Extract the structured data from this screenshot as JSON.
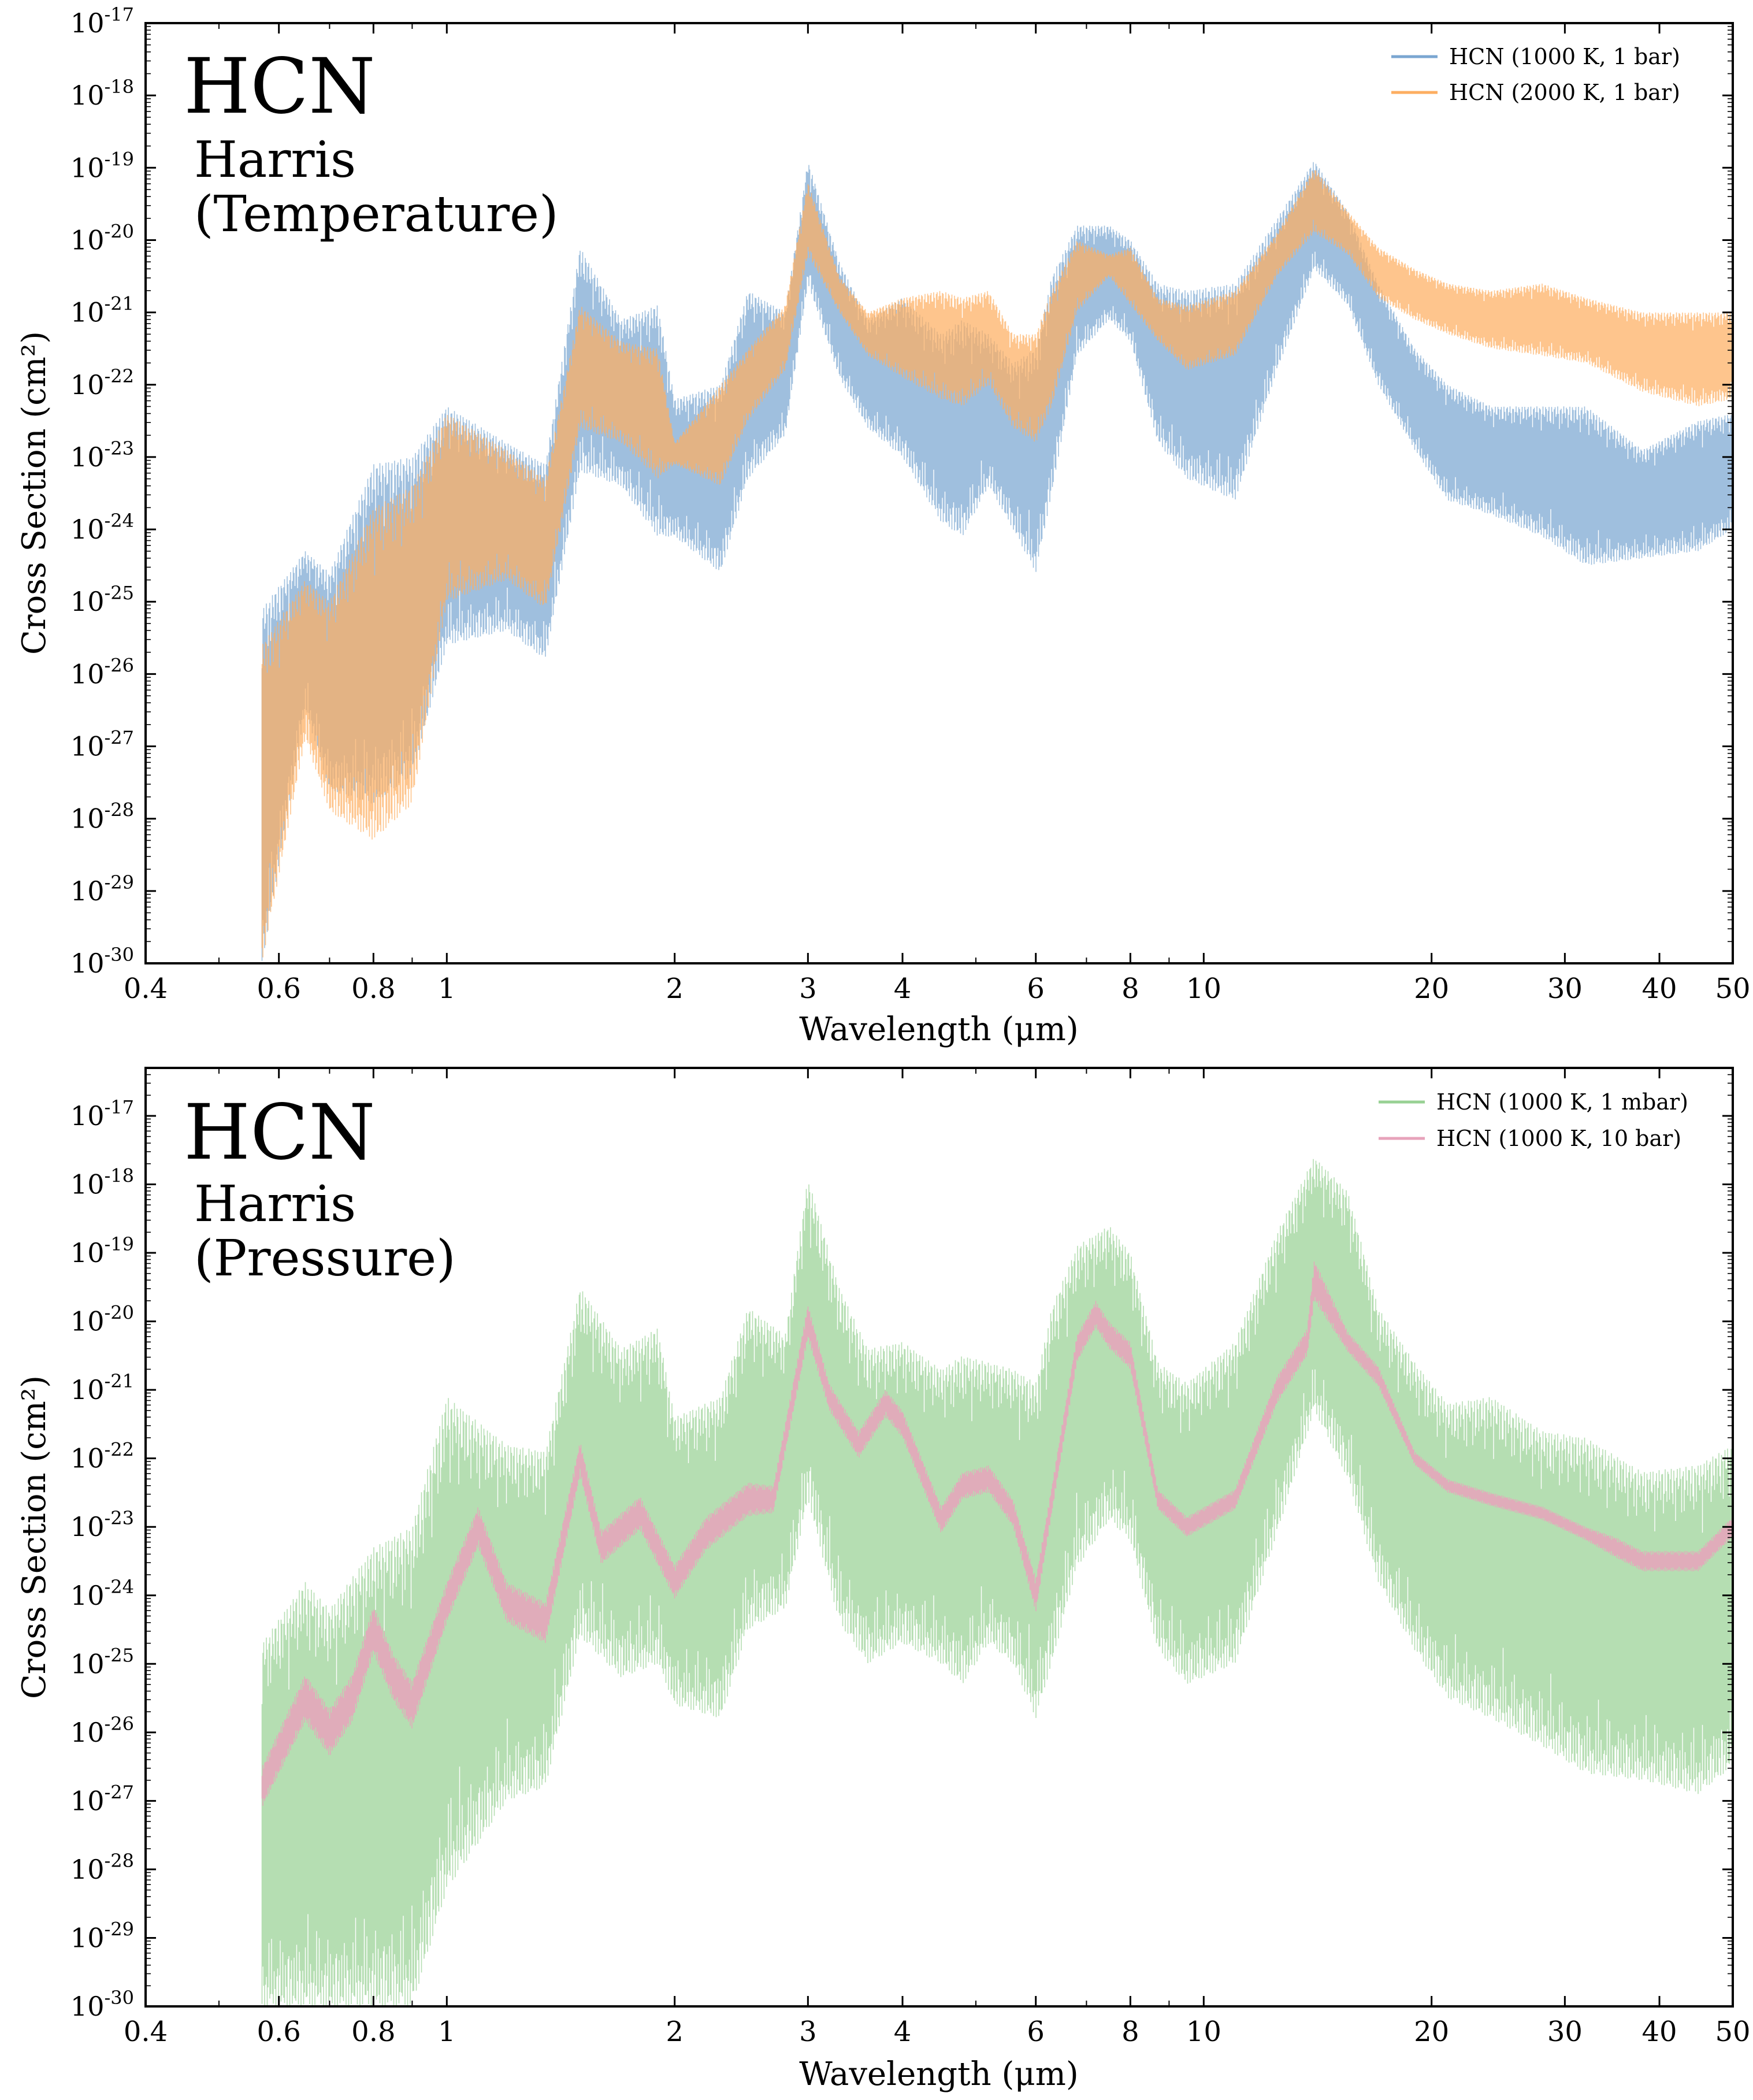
{
  "chart_data": [
    {
      "type": "line",
      "title": "HCN",
      "subtitle_lines": [
        "Harris",
        "(Temperature)"
      ],
      "xlabel": "Wavelength (μm)",
      "ylabel": "Cross Section (cm²)",
      "xscale": "log",
      "yscale": "log",
      "xlim": [
        0.4,
        50
      ],
      "ylim_exp": [
        -30,
        -17
      ],
      "x_ticks": [
        "0.4",
        "0.6",
        "0.8",
        "1",
        "2",
        "3",
        "4",
        "6",
        "8",
        "10",
        "20",
        "30",
        "40",
        "50"
      ],
      "x_tick_values": [
        0.4,
        0.6,
        0.8,
        1,
        2,
        3,
        4,
        6,
        8,
        10,
        20,
        30,
        40,
        50
      ],
      "y_tick_base": "10",
      "y_tick_exponents": [
        "-17",
        "-18",
        "-19",
        "-20",
        "-21",
        "-22",
        "-23",
        "-24",
        "-25",
        "-26",
        "-27",
        "-28",
        "-29",
        "-30"
      ],
      "legend_position": "top-right",
      "series": [
        {
          "name": "HCN (1000 K, 1 bar)",
          "color": "#7aa6d1",
          "x": [
            0.57,
            0.65,
            0.7,
            0.8,
            0.9,
            1.0,
            1.2,
            1.35,
            1.5,
            1.7,
            1.9,
            2.0,
            2.3,
            2.5,
            2.8,
            3.0,
            3.3,
            3.6,
            4.0,
            4.5,
            4.8,
            5.2,
            5.6,
            6.0,
            6.3,
            6.8,
            7.5,
            8.0,
            8.7,
            9.5,
            11.0,
            12.5,
            14.0,
            15.5,
            17.0,
            19.0,
            21.0,
            24.0,
            28.0,
            32.0,
            38.0,
            45.0,
            50.0
          ],
          "y_upper_exp": [
            -25.1,
            -24.3,
            -24.6,
            -23.1,
            -23.0,
            -22.3,
            -22.8,
            -23.1,
            -20.1,
            -21.1,
            -20.9,
            -22.2,
            -22.0,
            -20.7,
            -21.0,
            -18.9,
            -20.3,
            -21.1,
            -20.8,
            -21.3,
            -21.1,
            -21.3,
            -21.7,
            -21.5,
            -20.5,
            -19.8,
            -19.8,
            -20.0,
            -20.6,
            -20.7,
            -20.6,
            -19.7,
            -18.9,
            -19.6,
            -20.6,
            -21.5,
            -22.0,
            -22.3,
            -22.3,
            -22.3,
            -22.9,
            -22.5,
            -22.4
          ],
          "y_lower_exp": [
            -30.0,
            -26.5,
            -27.6,
            -27.8,
            -27.4,
            -25.6,
            -25.4,
            -25.8,
            -23.2,
            -23.4,
            -24.1,
            -24.1,
            -24.6,
            -23.3,
            -22.7,
            -20.6,
            -21.9,
            -22.6,
            -23.0,
            -23.9,
            -24.1,
            -23.4,
            -24.0,
            -24.6,
            -23.5,
            -21.6,
            -21.1,
            -21.4,
            -22.8,
            -23.3,
            -23.6,
            -21.8,
            -20.4,
            -20.9,
            -22.0,
            -22.9,
            -23.6,
            -23.8,
            -24.1,
            -24.5,
            -24.4,
            -24.3,
            -24.0
          ]
        },
        {
          "name": "HCN (2000 K, 1 bar)",
          "color": "#fdae61",
          "x": [
            0.57,
            0.65,
            0.7,
            0.8,
            0.9,
            1.0,
            1.2,
            1.35,
            1.5,
            1.7,
            1.9,
            2.0,
            2.3,
            2.5,
            2.8,
            3.0,
            3.3,
            3.6,
            4.0,
            4.5,
            4.8,
            5.2,
            5.6,
            6.0,
            6.3,
            6.8,
            7.5,
            8.0,
            8.7,
            9.5,
            11.0,
            12.5,
            14.0,
            15.5,
            17.0,
            19.0,
            21.0,
            24.0,
            28.0,
            32.0,
            38.0,
            45.0,
            50.0
          ],
          "y_upper_exp": [
            -25.6,
            -24.7,
            -25.0,
            -23.7,
            -23.4,
            -22.4,
            -22.9,
            -23.3,
            -20.9,
            -21.4,
            -21.5,
            -22.8,
            -22.0,
            -21.5,
            -20.9,
            -19.2,
            -20.5,
            -21.0,
            -20.8,
            -20.7,
            -20.8,
            -20.7,
            -21.3,
            -21.3,
            -20.7,
            -20.0,
            -20.2,
            -20.1,
            -20.8,
            -20.9,
            -20.7,
            -19.9,
            -19.0,
            -19.6,
            -20.1,
            -20.4,
            -20.6,
            -20.7,
            -20.6,
            -20.8,
            -21.0,
            -21.0,
            -21.0
          ],
          "y_lower_exp": [
            -30.0,
            -26.9,
            -27.9,
            -28.3,
            -27.8,
            -25.0,
            -24.7,
            -25.1,
            -22.6,
            -22.8,
            -23.3,
            -23.1,
            -23.4,
            -22.5,
            -21.8,
            -20.2,
            -21.0,
            -21.6,
            -21.9,
            -22.2,
            -22.3,
            -22.0,
            -22.6,
            -22.8,
            -22.3,
            -21.0,
            -20.5,
            -20.9,
            -21.4,
            -21.8,
            -21.6,
            -20.5,
            -19.9,
            -20.2,
            -20.8,
            -21.1,
            -21.3,
            -21.5,
            -21.6,
            -21.7,
            -22.1,
            -22.3,
            -22.2
          ]
        }
      ]
    },
    {
      "type": "line",
      "title": "HCN",
      "subtitle_lines": [
        "Harris",
        "(Pressure)"
      ],
      "xlabel": "Wavelength (μm)",
      "ylabel": "Cross Section (cm²)",
      "xscale": "log",
      "yscale": "log",
      "xlim": [
        0.4,
        50
      ],
      "ylim_exp": [
        -30,
        -16.3
      ],
      "x_ticks": [
        "0.4",
        "0.6",
        "0.8",
        "1",
        "2",
        "3",
        "4",
        "6",
        "8",
        "10",
        "20",
        "30",
        "40",
        "50"
      ],
      "x_tick_values": [
        0.4,
        0.6,
        0.8,
        1,
        2,
        3,
        4,
        6,
        8,
        10,
        20,
        30,
        40,
        50
      ],
      "y_tick_base": "10",
      "y_tick_exponents": [
        "-17",
        "-18",
        "-19",
        "-20",
        "-21",
        "-22",
        "-23",
        "-24",
        "-25",
        "-26",
        "-27",
        "-28",
        "-29",
        "-30"
      ],
      "legend_position": "top-right",
      "series": [
        {
          "name": "HCN (1000 K, 1 mbar)",
          "color": "#98d194",
          "x": [
            0.57,
            0.65,
            0.7,
            0.8,
            0.9,
            1.0,
            1.2,
            1.35,
            1.5,
            1.7,
            1.9,
            2.0,
            2.3,
            2.5,
            2.8,
            3.0,
            3.3,
            3.6,
            4.0,
            4.5,
            4.8,
            5.2,
            5.6,
            6.0,
            6.3,
            6.8,
            7.5,
            8.0,
            8.7,
            9.5,
            11.0,
            12.5,
            14.0,
            15.5,
            17.0,
            19.0,
            21.0,
            24.0,
            28.0,
            32.0,
            38.0,
            45.0,
            50.0
          ],
          "y_upper_exp": [
            -24.7,
            -23.8,
            -24.2,
            -23.3,
            -23.0,
            -21.1,
            -21.8,
            -21.9,
            -19.5,
            -20.4,
            -20.1,
            -21.4,
            -21.1,
            -19.8,
            -20.2,
            -17.9,
            -19.5,
            -20.4,
            -20.3,
            -20.7,
            -20.5,
            -20.6,
            -20.7,
            -20.9,
            -19.8,
            -18.9,
            -18.6,
            -19.0,
            -20.6,
            -20.9,
            -20.3,
            -18.7,
            -17.6,
            -18.1,
            -19.8,
            -20.6,
            -21.2,
            -21.1,
            -21.6,
            -21.7,
            -22.2,
            -22.1,
            -21.8
          ],
          "y_lower_exp": [
            -30.0,
            -30.0,
            -30.0,
            -30.0,
            -30.0,
            -28.3,
            -27.0,
            -26.8,
            -24.6,
            -25.2,
            -25.0,
            -25.6,
            -25.8,
            -24.5,
            -24.2,
            -22.6,
            -24.4,
            -25.0,
            -24.7,
            -25.0,
            -25.3,
            -24.7,
            -25.0,
            -25.8,
            -25.0,
            -23.6,
            -22.9,
            -23.2,
            -24.8,
            -25.3,
            -25.0,
            -23.1,
            -21.3,
            -22.3,
            -23.8,
            -24.8,
            -25.5,
            -25.8,
            -26.2,
            -26.6,
            -26.7,
            -26.9,
            -26.5
          ]
        },
        {
          "name": "HCN (1000 K, 10 bar)",
          "color": "#e7a3bb",
          "x": [
            0.57,
            0.65,
            0.7,
            0.75,
            0.8,
            0.85,
            0.9,
            1.0,
            1.1,
            1.2,
            1.35,
            1.5,
            1.6,
            1.8,
            2.0,
            2.2,
            2.5,
            2.7,
            3.0,
            3.2,
            3.5,
            3.8,
            4.0,
            4.5,
            4.8,
            5.2,
            5.6,
            6.0,
            6.3,
            6.8,
            7.2,
            7.5,
            8.0,
            8.7,
            9.5,
            11.0,
            12.5,
            13.7,
            14.0,
            15.5,
            17.0,
            19.0,
            21.0,
            24.0,
            28.0,
            32.0,
            35.0,
            38.0,
            45.0,
            50.0
          ],
          "y_center_exp": [
            -26.8,
            -25.5,
            -26.0,
            -25.5,
            -24.5,
            -25.2,
            -25.6,
            -24.1,
            -23.0,
            -24.1,
            -24.4,
            -22.0,
            -23.3,
            -22.8,
            -23.8,
            -23.1,
            -22.6,
            -22.6,
            -20.0,
            -21.1,
            -21.8,
            -21.2,
            -21.5,
            -22.9,
            -22.4,
            -22.3,
            -22.8,
            -24.0,
            -22.6,
            -20.4,
            -19.9,
            -20.2,
            -20.5,
            -22.6,
            -23.0,
            -22.6,
            -21.0,
            -20.3,
            -19.4,
            -20.3,
            -20.8,
            -22.0,
            -22.4,
            -22.6,
            -22.8,
            -23.1,
            -23.3,
            -23.5,
            -23.5,
            -23.0
          ],
          "y_spread_exp": [
            0.3,
            0.35,
            0.35,
            0.35,
            0.35,
            0.35,
            0.35,
            0.3,
            0.3,
            0.3,
            0.3,
            0.25,
            0.25,
            0.25,
            0.25,
            0.25,
            0.25,
            0.2,
            0.25,
            0.2,
            0.2,
            0.2,
            0.2,
            0.2,
            0.2,
            0.2,
            0.2,
            0.25,
            0.2,
            0.2,
            0.2,
            0.2,
            0.2,
            0.15,
            0.15,
            0.15,
            0.2,
            0.2,
            0.3,
            0.15,
            0.15,
            0.1,
            0.1,
            0.1,
            0.1,
            0.1,
            0.15,
            0.15,
            0.15,
            0.15
          ]
        }
      ]
    }
  ]
}
